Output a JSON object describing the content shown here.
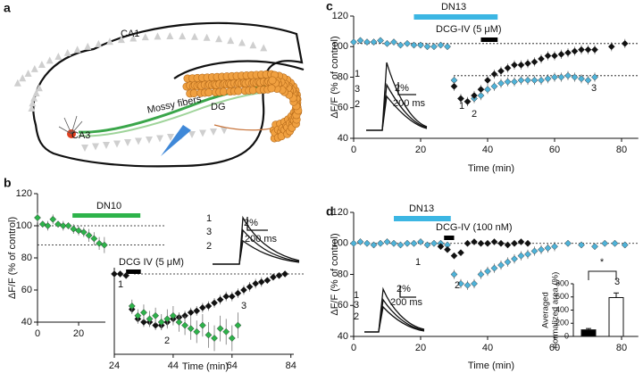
{
  "diagram": {
    "panel": "a",
    "labels": [
      "CA1",
      "CA3",
      "Mossy fibers",
      "DG"
    ]
  },
  "chart_data": [
    {
      "type": "scatter",
      "panel": "b",
      "ylabel": "ΔF/F (% of control)",
      "xlim": [
        0,
        33
      ],
      "xticks": [
        0,
        20
      ],
      "ylim": [
        40,
        120
      ],
      "yticks": [
        40,
        60,
        80,
        100,
        120
      ],
      "reference_lines": [
        100,
        88
      ],
      "treatments": [
        {
          "label": "DN10",
          "start": 17,
          "end": 50,
          "color": "#2db34a"
        }
      ],
      "series": [
        {
          "color": "#2db34a",
          "x": [
            0,
            2.5,
            5,
            7.5,
            10,
            12.5,
            15,
            17.5,
            20,
            22.5,
            25,
            27.5,
            30,
            32.5
          ],
          "values": [
            105,
            101,
            100,
            104,
            101,
            100,
            100,
            98,
            97,
            96,
            94,
            92,
            89,
            88
          ],
          "errors": [
            3,
            2,
            3,
            3,
            2,
            3,
            2,
            3,
            3,
            3,
            4,
            4,
            4,
            5
          ]
        }
      ]
    },
    {
      "type": "scatter",
      "xlabel": "Time (min)",
      "xlim": [
        24,
        85
      ],
      "xticks": [
        24,
        44,
        64,
        84
      ],
      "ylim": [
        50,
        105
      ],
      "reference_lines": [
        100
      ],
      "treatments": [
        {
          "label": "DCG IV (5 μM)",
          "start": 28,
          "end": 33,
          "color": "#000000"
        }
      ],
      "annotations": [
        "1",
        "3",
        "2",
        "2%",
        "200 ms",
        "1",
        "2",
        "3"
      ],
      "series": [
        {
          "color": "#111111",
          "x": [
            24,
            26,
            28,
            30,
            32,
            34,
            36,
            38,
            40,
            42,
            44,
            46,
            48,
            50,
            52,
            54,
            56,
            58,
            60,
            62,
            64,
            66,
            68,
            70,
            72,
            74,
            76,
            78,
            80,
            82
          ],
          "values": [
            100,
            100,
            99,
            78,
            72,
            70,
            70,
            68,
            68,
            70,
            72,
            73,
            74,
            76,
            77,
            79,
            80,
            82,
            84,
            86,
            86,
            88,
            90,
            92,
            94,
            95,
            96,
            98,
            99,
            100
          ],
          "errors": [
            2,
            2,
            2,
            3,
            3,
            3,
            3,
            3,
            3,
            3,
            3,
            3,
            3,
            3,
            3,
            3,
            3,
            3,
            3,
            3,
            3,
            3,
            3,
            3,
            3,
            3,
            2,
            2,
            2,
            2
          ]
        },
        {
          "color": "#2db34a",
          "x": [
            30,
            32,
            34,
            36,
            38,
            40,
            42,
            44,
            46,
            48,
            50,
            52,
            54,
            56,
            58,
            60,
            62,
            64,
            66
          ],
          "values": [
            80,
            74,
            76,
            72,
            74,
            70,
            72,
            74,
            70,
            68,
            66,
            64,
            68,
            62,
            60,
            66,
            64,
            60,
            68
          ],
          "errors": [
            4,
            4,
            5,
            5,
            5,
            5,
            6,
            6,
            6,
            6,
            7,
            7,
            7,
            8,
            8,
            8,
            8,
            8,
            8
          ]
        }
      ]
    },
    {
      "type": "scatter",
      "panel": "c",
      "ylabel": "ΔF/F (% of control)",
      "xlabel": "Time (min)",
      "xlim": [
        0,
        85
      ],
      "xticks": [
        0,
        20,
        40,
        60,
        80
      ],
      "ylim": [
        40,
        120
      ],
      "yticks": [
        40,
        60,
        80,
        100,
        120
      ],
      "reference_lines": [
        102,
        81
      ],
      "treatments": [
        {
          "label": "DN13",
          "start": 18,
          "end": 43,
          "color": "#3cb6e3"
        },
        {
          "label": "DCG-IV (5 μM)",
          "start": 38,
          "end": 43,
          "color": "#000000"
        }
      ],
      "annotations": [
        "1",
        "3",
        "2",
        "2%",
        "200 ms",
        "1",
        "2",
        "3"
      ],
      "series": [
        {
          "color": "#4fb3d9",
          "x": [
            0,
            2,
            4,
            6,
            8,
            10,
            12,
            14,
            16,
            18,
            20,
            22,
            24,
            26,
            28,
            30,
            32,
            34,
            36,
            38,
            40,
            42,
            44,
            46,
            48,
            50,
            52,
            54,
            56,
            58,
            60,
            62,
            64,
            66,
            68,
            70,
            72
          ],
          "values": [
            103,
            104,
            103,
            103,
            104,
            102,
            103,
            101,
            102,
            101,
            101,
            100,
            100,
            101,
            100,
            78,
            66,
            64,
            66,
            68,
            72,
            74,
            76,
            77,
            77,
            78,
            78,
            78,
            78,
            79,
            80,
            80,
            81,
            80,
            79,
            78,
            80
          ],
          "errors": [
            2,
            2,
            2,
            2,
            2,
            2,
            2,
            2,
            2,
            2,
            2,
            2,
            2,
            2,
            2,
            3,
            3,
            3,
            3,
            3,
            3,
            3,
            3,
            3,
            3,
            3,
            3,
            3,
            3,
            3,
            3,
            3,
            3,
            3,
            3,
            3,
            3
          ]
        },
        {
          "color": "#111111",
          "x": [
            30,
            32,
            34,
            36,
            38,
            40,
            42,
            44,
            46,
            48,
            50,
            52,
            54,
            56,
            58,
            60,
            62,
            64,
            66,
            68,
            70,
            72,
            77,
            81
          ],
          "values": [
            74,
            66,
            64,
            68,
            72,
            78,
            82,
            84,
            86,
            88,
            88,
            89,
            90,
            92,
            94,
            94,
            95,
            96,
            97,
            98,
            98,
            98,
            100,
            102
          ],
          "errors": [
            3,
            3,
            3,
            3,
            3,
            3,
            3,
            3,
            3,
            3,
            3,
            3,
            3,
            3,
            3,
            3,
            3,
            3,
            3,
            3,
            3,
            3,
            3,
            3
          ]
        }
      ]
    },
    {
      "type": "scatter",
      "panel": "d",
      "ylabel": "ΔF/F (% of control)",
      "xlabel": "Time (min)",
      "xlim": [
        0,
        85
      ],
      "xticks": [
        0,
        20,
        40,
        60,
        80
      ],
      "ylim": [
        40,
        120
      ],
      "yticks": [
        40,
        60,
        80,
        100,
        120
      ],
      "reference_lines": [
        100
      ],
      "treatments": [
        {
          "label": "DN13",
          "start": 12,
          "end": 29,
          "color": "#3cb6e3"
        },
        {
          "label": "DCG-IV (100 nM)",
          "start": 27,
          "end": 30,
          "color": "#000000"
        }
      ],
      "annotations": [
        "1",
        "3",
        "2",
        "2%",
        "200 ms",
        "1",
        "2",
        "3"
      ],
      "series": [
        {
          "color": "#4fb3d9",
          "x": [
            0,
            2,
            4,
            6,
            8,
            10,
            12,
            14,
            16,
            18,
            20,
            22,
            24,
            26,
            28,
            30,
            32,
            34,
            36,
            38,
            40,
            42,
            44,
            46,
            48,
            50,
            52,
            54,
            56,
            58,
            60,
            64,
            68,
            72,
            75,
            78,
            81
          ],
          "values": [
            100,
            101,
            100,
            99,
            100,
            101,
            100,
            99,
            100,
            100,
            101,
            99,
            100,
            100,
            99,
            80,
            74,
            73,
            74,
            80,
            82,
            84,
            86,
            88,
            90,
            92,
            93,
            95,
            96,
            97,
            98,
            100,
            99,
            98,
            100,
            100,
            99
          ],
          "errors": [
            2,
            2,
            2,
            2,
            2,
            2,
            2,
            2,
            2,
            2,
            2,
            2,
            2,
            2,
            2,
            3,
            3,
            3,
            3,
            3,
            3,
            3,
            3,
            3,
            3,
            3,
            3,
            3,
            3,
            3,
            3,
            2,
            2,
            2,
            2,
            2,
            2
          ]
        },
        {
          "color": "#111111",
          "x": [
            26,
            28,
            30,
            32,
            34,
            36,
            38,
            40,
            42,
            44,
            46,
            48,
            50,
            52
          ],
          "values": [
            98,
            96,
            92,
            94,
            100,
            101,
            100,
            100,
            101,
            100,
            99,
            100,
            101,
            100
          ],
          "errors": [
            2,
            2,
            2,
            2,
            2,
            2,
            2,
            2,
            2,
            2,
            2,
            2,
            2,
            2
          ]
        }
      ]
    },
    {
      "type": "bar",
      "ylabel": [
        "Averaged",
        "normalized area (%)"
      ],
      "ylim": [
        0,
        800
      ],
      "yticks": [
        0,
        200,
        400,
        600,
        800
      ],
      "values": [
        100,
        590
      ],
      "errors": [
        20,
        70
      ],
      "colors": [
        "#000000",
        "#ffffff"
      ],
      "annotations": [
        "*"
      ]
    }
  ]
}
